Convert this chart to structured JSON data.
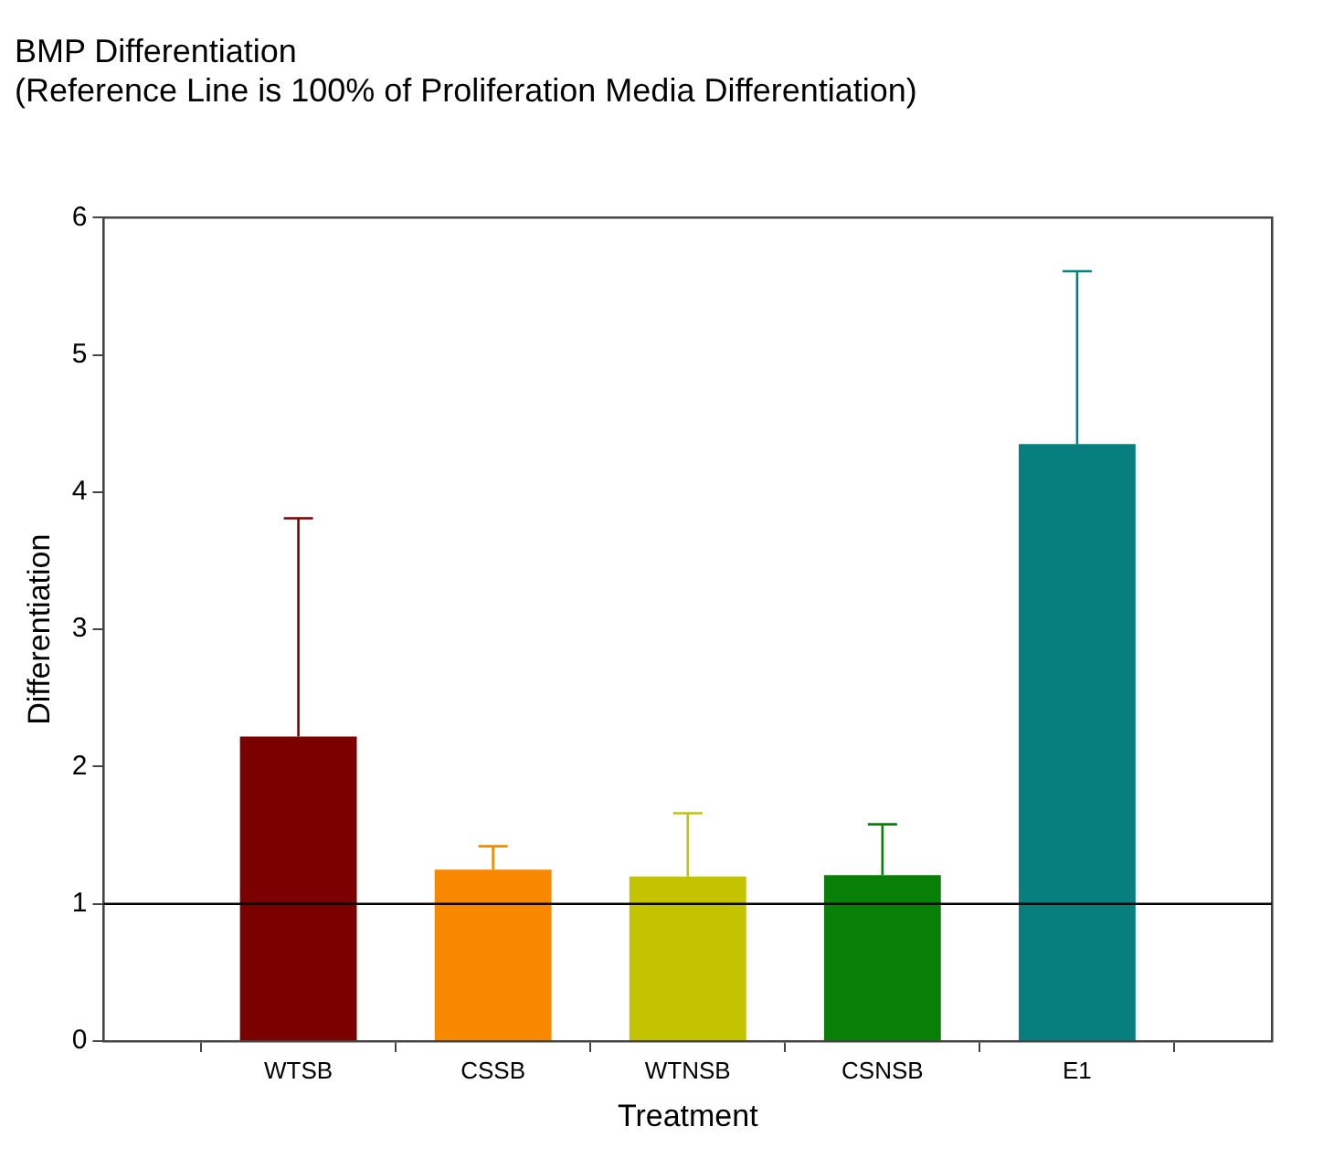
{
  "chart_data": {
    "type": "bar",
    "title": "BMP Differentiation",
    "subtitle": "(Reference Line is 100% of Proliferation Media Differentiation)",
    "xlabel": "Treatment",
    "ylabel": "Differentiation",
    "categories": [
      "WTSB",
      "CSSB",
      "WTNSB",
      "CSNSB",
      "E1"
    ],
    "values": [
      2.22,
      1.25,
      1.2,
      1.21,
      4.35
    ],
    "colors": [
      "#7b0000",
      "#f78800",
      "#c3c300",
      "#087f07",
      "#077f7f"
    ],
    "errors": [
      [
        2.22,
        3.81
      ],
      [
        1.25,
        1.42
      ],
      [
        1.2,
        1.66
      ],
      [
        1.21,
        1.58
      ],
      [
        4.35,
        5.61
      ]
    ],
    "ylim": [
      0,
      6
    ],
    "yticks": [
      0,
      1,
      2,
      3,
      4,
      5,
      6
    ],
    "ref_lines": [
      {
        "axis": "y",
        "value": 1,
        "color": "#000000"
      }
    ],
    "grid": false,
    "legend": false
  }
}
